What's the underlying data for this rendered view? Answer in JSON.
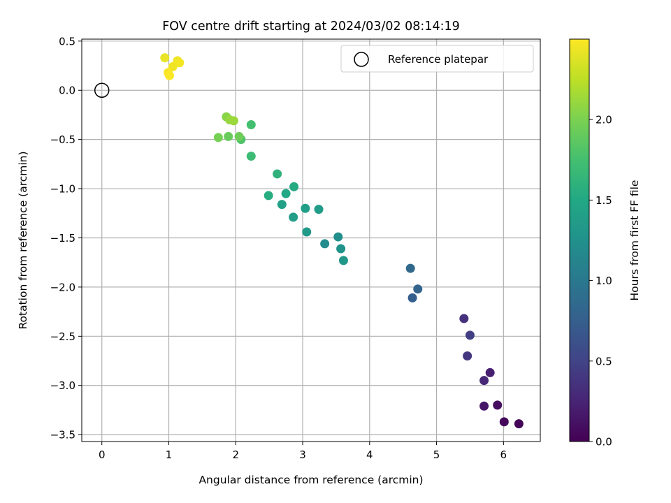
{
  "chart_data": {
    "type": "scatter",
    "title": "FOV centre drift starting at 2024/03/02 08:14:19",
    "xlabel": "Angular distance from reference (arcmin)",
    "ylabel": "Rotation from reference (arcmin)",
    "xlim": [
      -0.3,
      6.55
    ],
    "ylim": [
      -3.57,
      0.52
    ],
    "xticks": [
      {
        "value": 0,
        "label": "0"
      },
      {
        "value": 1,
        "label": "1"
      },
      {
        "value": 2,
        "label": "2"
      },
      {
        "value": 3,
        "label": "3"
      },
      {
        "value": 4,
        "label": "4"
      },
      {
        "value": 5,
        "label": "5"
      },
      {
        "value": 6,
        "label": "6"
      }
    ],
    "yticks": [
      {
        "value": 0.5,
        "label": "0.5"
      },
      {
        "value": 0.0,
        "label": "0.0"
      },
      {
        "value": -0.5,
        "label": "−0.5"
      },
      {
        "value": -1.0,
        "label": "−1.0"
      },
      {
        "value": -1.5,
        "label": "−1.5"
      },
      {
        "value": -2.0,
        "label": "−2.0"
      },
      {
        "value": -2.5,
        "label": "−2.5"
      },
      {
        "value": -3.0,
        "label": "−3.0"
      },
      {
        "value": -3.5,
        "label": "−3.5"
      }
    ],
    "grid": true,
    "legend": {
      "placement": "top-right",
      "entries": [
        "Reference platepar"
      ]
    },
    "reference_point": {
      "x": 0,
      "y": 0,
      "marker": "open-circle"
    },
    "colorbar": {
      "label": "Hours from first FF file",
      "colormap": "viridis",
      "range": [
        0,
        2.5
      ],
      "ticks": [
        {
          "value": 0.0,
          "label": "0.0"
        },
        {
          "value": 0.5,
          "label": "0.5"
        },
        {
          "value": 1.0,
          "label": "1.0"
        },
        {
          "value": 1.5,
          "label": "1.5"
        },
        {
          "value": 2.0,
          "label": "2.0"
        }
      ]
    },
    "points": [
      {
        "x": 6.23,
        "y": -3.39,
        "hours": 0.02
      },
      {
        "x": 6.01,
        "y": -3.37,
        "hours": 0.05
      },
      {
        "x": 5.91,
        "y": -3.2,
        "hours": 0.08
      },
      {
        "x": 5.71,
        "y": -3.21,
        "hours": 0.15
      },
      {
        "x": 5.8,
        "y": -2.87,
        "hours": 0.22
      },
      {
        "x": 5.71,
        "y": -2.95,
        "hours": 0.28
      },
      {
        "x": 5.46,
        "y": -2.7,
        "hours": 0.4
      },
      {
        "x": 5.5,
        "y": -2.49,
        "hours": 0.45
      },
      {
        "x": 5.41,
        "y": -2.32,
        "hours": 0.35
      },
      {
        "x": 4.64,
        "y": -2.11,
        "hours": 0.75
      },
      {
        "x": 4.72,
        "y": -2.02,
        "hours": 0.8
      },
      {
        "x": 4.61,
        "y": -1.81,
        "hours": 0.85
      },
      {
        "x": 3.61,
        "y": -1.73,
        "hours": 1.32
      },
      {
        "x": 3.57,
        "y": -1.61,
        "hours": 1.27
      },
      {
        "x": 3.53,
        "y": -1.49,
        "hours": 1.22
      },
      {
        "x": 3.33,
        "y": -1.56,
        "hours": 1.2
      },
      {
        "x": 3.06,
        "y": -1.44,
        "hours": 1.35
      },
      {
        "x": 3.24,
        "y": -1.21,
        "hours": 1.37
      },
      {
        "x": 3.04,
        "y": -1.2,
        "hours": 1.4
      },
      {
        "x": 2.86,
        "y": -1.29,
        "hours": 1.38
      },
      {
        "x": 2.69,
        "y": -1.16,
        "hours": 1.42
      },
      {
        "x": 2.75,
        "y": -1.05,
        "hours": 1.5
      },
      {
        "x": 2.87,
        "y": -0.98,
        "hours": 1.52
      },
      {
        "x": 2.49,
        "y": -1.07,
        "hours": 1.55
      },
      {
        "x": 2.62,
        "y": -0.85,
        "hours": 1.6
      },
      {
        "x": 2.23,
        "y": -0.67,
        "hours": 1.7
      },
      {
        "x": 2.23,
        "y": -0.35,
        "hours": 1.75
      },
      {
        "x": 2.08,
        "y": -0.5,
        "hours": 1.8
      },
      {
        "x": 2.05,
        "y": -0.47,
        "hours": 1.95
      },
      {
        "x": 1.89,
        "y": -0.47,
        "hours": 1.92
      },
      {
        "x": 1.74,
        "y": -0.48,
        "hours": 1.98
      },
      {
        "x": 1.86,
        "y": -0.27,
        "hours": 2.05
      },
      {
        "x": 1.91,
        "y": -0.3,
        "hours": 2.1
      },
      {
        "x": 1.97,
        "y": -0.31,
        "hours": 2.12
      },
      {
        "x": 0.94,
        "y": 0.33,
        "hours": 2.42
      },
      {
        "x": 1.13,
        "y": 0.3,
        "hours": 2.44
      },
      {
        "x": 1.16,
        "y": 0.28,
        "hours": 2.46
      },
      {
        "x": 1.06,
        "y": 0.24,
        "hours": 2.45
      },
      {
        "x": 0.99,
        "y": 0.18,
        "hours": 2.48
      },
      {
        "x": 1.01,
        "y": 0.15,
        "hours": 2.49
      }
    ]
  }
}
